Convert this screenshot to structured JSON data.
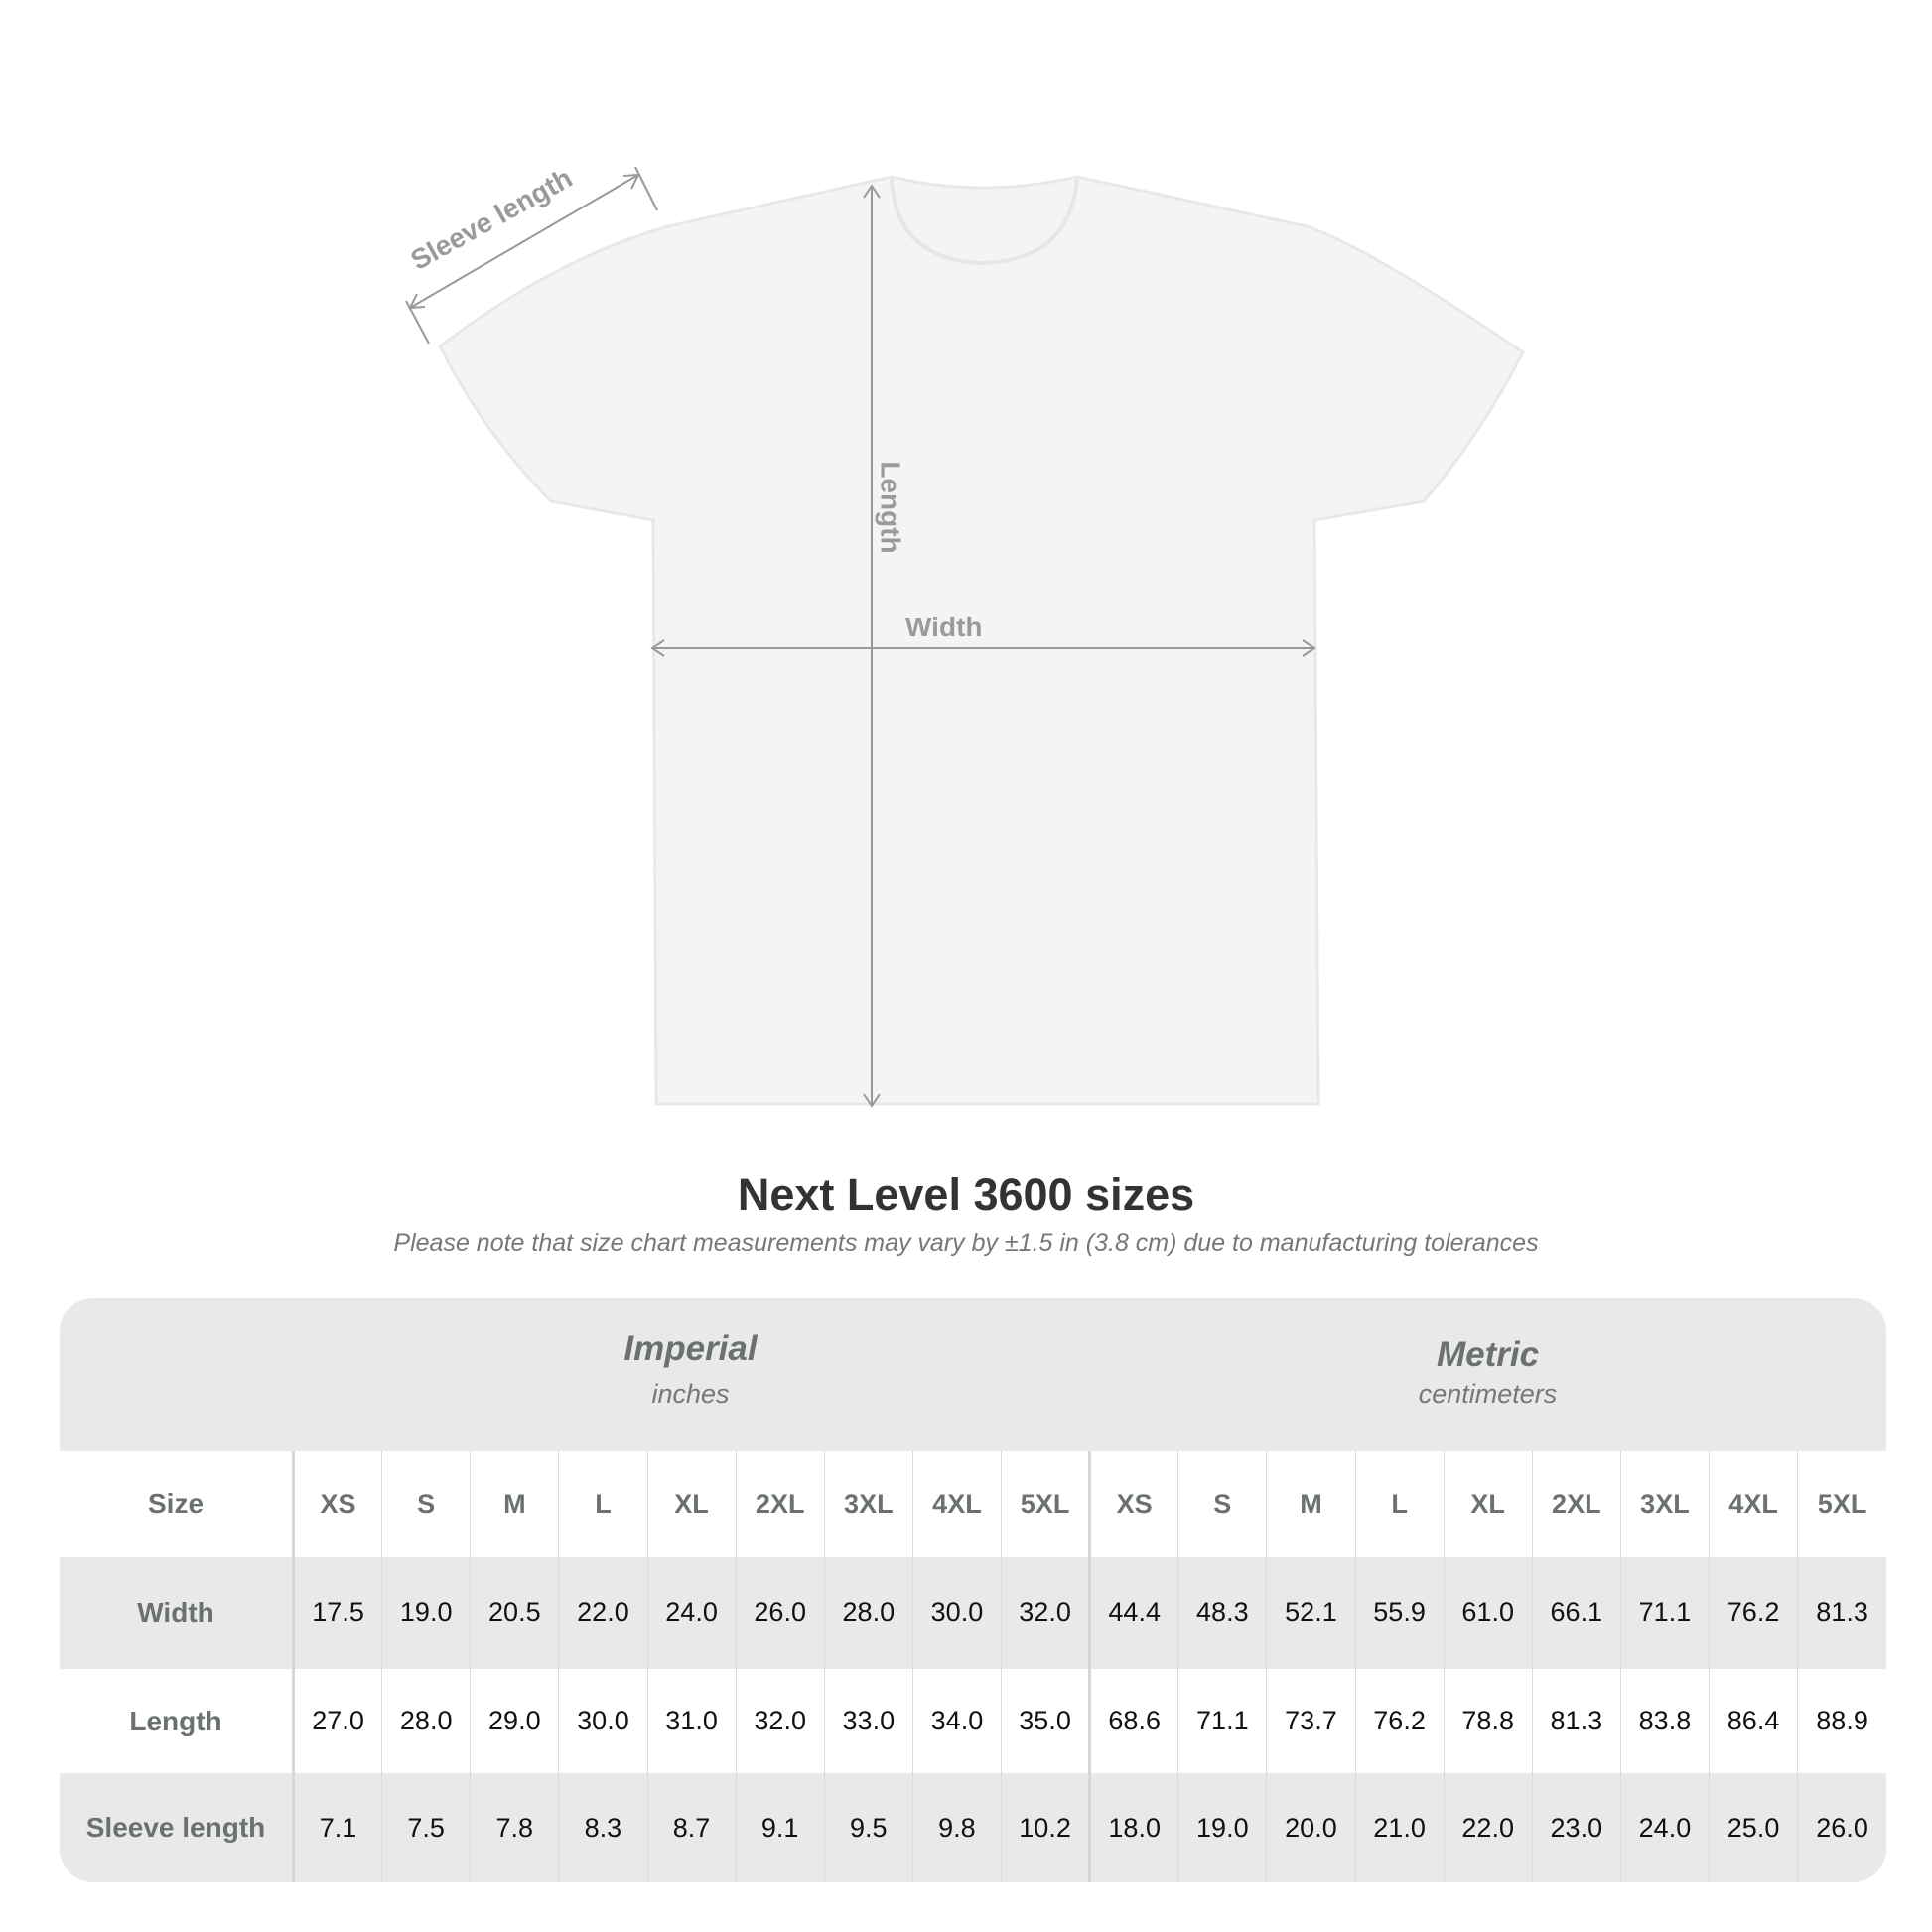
{
  "diagram": {
    "labels": {
      "sleeve": "Sleeve length",
      "length": "Length",
      "width": "Width"
    },
    "shirt_color": "#f4f4f4",
    "arrow_color": "#999999"
  },
  "title": "Next Level 3600 sizes",
  "subtitle": "Please note that size chart measurements may vary by ±1.5 in (3.8 cm) due to manufacturing tolerances",
  "table": {
    "imperial": {
      "name": "Imperial",
      "unit": "inches"
    },
    "metric": {
      "name": "Metric",
      "unit": "centimeters"
    },
    "size_label": "Size",
    "sizes": [
      "XS",
      "S",
      "M",
      "L",
      "XL",
      "2XL",
      "3XL",
      "4XL",
      "5XL"
    ],
    "rows": [
      {
        "label": "Width",
        "imperial": [
          "17.5",
          "19.0",
          "20.5",
          "22.0",
          "24.0",
          "26.0",
          "28.0",
          "30.0",
          "32.0"
        ],
        "metric": [
          "44.4",
          "48.3",
          "52.1",
          "55.9",
          "61.0",
          "66.1",
          "71.1",
          "76.2",
          "81.3"
        ]
      },
      {
        "label": "Length",
        "imperial": [
          "27.0",
          "28.0",
          "29.0",
          "30.0",
          "31.0",
          "32.0",
          "33.0",
          "34.0",
          "35.0"
        ],
        "metric": [
          "68.6",
          "71.1",
          "73.7",
          "76.2",
          "78.8",
          "81.3",
          "83.8",
          "86.4",
          "88.9"
        ]
      },
      {
        "label": "Sleeve length",
        "imperial": [
          "7.1",
          "7.5",
          "7.8",
          "8.3",
          "8.7",
          "9.1",
          "9.5",
          "9.8",
          "10.2"
        ],
        "metric": [
          "18.0",
          "19.0",
          "20.0",
          "21.0",
          "22.0",
          "23.0",
          "24.0",
          "25.0",
          "26.0"
        ]
      }
    ]
  }
}
